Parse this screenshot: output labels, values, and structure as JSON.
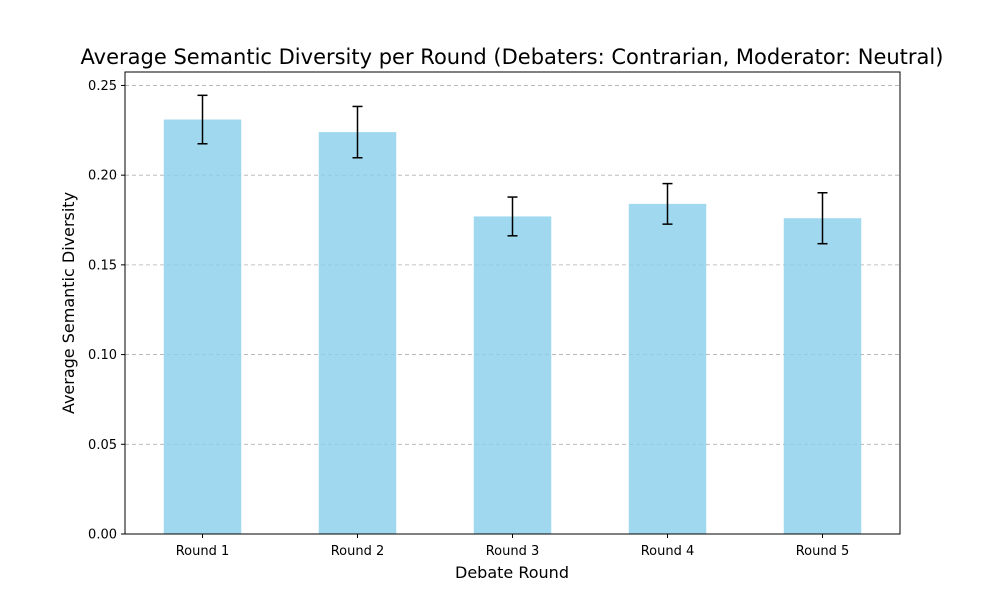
{
  "chart_data": {
    "type": "bar",
    "title": "Average Semantic Diversity per Round (Debaters: Contrarian, Moderator: Neutral)",
    "xlabel": "Debate Round",
    "ylabel": "Average Semantic Diversity",
    "categories": [
      "Round 1",
      "Round 2",
      "Round 3",
      "Round 4",
      "Round 5"
    ],
    "values": [
      0.231,
      0.224,
      0.177,
      0.184,
      0.176
    ],
    "error": [
      0.0135,
      0.0143,
      0.0108,
      0.0113,
      0.0142
    ],
    "ylim": [
      0,
      0.2575
    ],
    "yticks": [
      0.0,
      0.05,
      0.1,
      0.15,
      0.2,
      0.25
    ],
    "ytick_labels": [
      "0.00",
      "0.05",
      "0.10",
      "0.15",
      "0.20",
      "0.25"
    ],
    "grid": "y-dashed",
    "bar_color": "#87CEEB",
    "bar_alpha": 0.8,
    "error_color": "#000000",
    "grid_color": "#b0b0b0"
  }
}
